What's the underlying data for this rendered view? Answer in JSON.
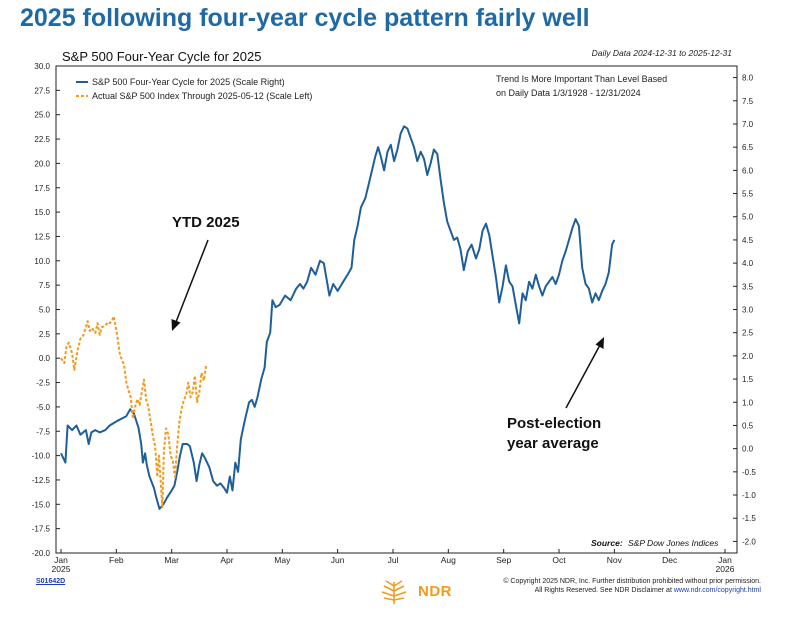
{
  "headline": "2025 following four-year cycle pattern fairly well",
  "chart_data": {
    "type": "line",
    "title": "S&P 500 Four-Year Cycle for 2025",
    "subtitle": "Daily Data 2024-12-31 to 2025-12-31",
    "notes": [
      "Trend Is More Important Than Level Based",
      "on Daily Data 1/3/1928 - 12/31/2024"
    ],
    "source_label": "Source:",
    "source_text": "S&P Dow Jones Indices",
    "x_ticks": [
      {
        "label": "Jan",
        "sub": "2025"
      },
      {
        "label": "Feb"
      },
      {
        "label": "Mar"
      },
      {
        "label": "Apr"
      },
      {
        "label": "May"
      },
      {
        "label": "Jun"
      },
      {
        "label": "Jul"
      },
      {
        "label": "Aug"
      },
      {
        "label": "Sep"
      },
      {
        "label": "Oct"
      },
      {
        "label": "Nov"
      },
      {
        "label": "Dec"
      },
      {
        "label": "Jan",
        "sub": "2026"
      }
    ],
    "left_axis": {
      "ylim": [
        -20,
        30
      ],
      "ticks": [
        "30.0",
        "27.5",
        "25.0",
        "22.5",
        "20.0",
        "17.5",
        "15.0",
        "12.5",
        "10.0",
        "7.5",
        "5.0",
        "2.5",
        "0.0",
        "-2.5",
        "-5.0",
        "-7.5",
        "-10.0",
        "-12.5",
        "-15.0",
        "-17.5",
        "-20.0"
      ]
    },
    "right_axis": {
      "ylim": [
        -2.25,
        8.25
      ],
      "ticks": [
        "8.0",
        "7.5",
        "7.0",
        "6.5",
        "6.0",
        "5.5",
        "5.0",
        "4.5",
        "4.0",
        "3.5",
        "3.0",
        "2.5",
        "2.0",
        "1.5",
        "1.0",
        "0.5",
        "0.0",
        "-0.5",
        "-1.0",
        "-1.5",
        "-2.0"
      ]
    },
    "series": [
      {
        "name": "S&P 500 Four-Year Cycle for 2025 (Scale Right)",
        "axis": "right",
        "color": "#1f5f99",
        "style": "solid",
        "points": [
          [
            0.0,
            -0.1
          ],
          [
            0.08,
            -0.3
          ],
          [
            0.12,
            0.5
          ],
          [
            0.2,
            0.4
          ],
          [
            0.28,
            0.5
          ],
          [
            0.35,
            0.3
          ],
          [
            0.45,
            0.4
          ],
          [
            0.5,
            0.1
          ],
          [
            0.55,
            0.35
          ],
          [
            0.62,
            0.4
          ],
          [
            0.7,
            0.35
          ],
          [
            0.8,
            0.4
          ],
          [
            0.88,
            0.5
          ],
          [
            0.95,
            0.55
          ],
          [
            1.02,
            0.6
          ],
          [
            1.1,
            0.65
          ],
          [
            1.18,
            0.7
          ],
          [
            1.25,
            0.85
          ],
          [
            1.32,
            0.75
          ],
          [
            1.4,
            0.45
          ],
          [
            1.45,
            0.1
          ],
          [
            1.48,
            -0.3
          ],
          [
            1.52,
            -0.1
          ],
          [
            1.55,
            -0.35
          ],
          [
            1.6,
            -0.6
          ],
          [
            1.68,
            -0.85
          ],
          [
            1.72,
            -1.05
          ],
          [
            1.78,
            -1.3
          ],
          [
            1.85,
            -1.2
          ],
          [
            1.92,
            -1.05
          ],
          [
            2.0,
            -0.9
          ],
          [
            2.05,
            -0.8
          ],
          [
            2.1,
            -0.5
          ],
          [
            2.15,
            -0.15
          ],
          [
            2.2,
            0.1
          ],
          [
            2.28,
            0.1
          ],
          [
            2.33,
            0.05
          ],
          [
            2.4,
            -0.3
          ],
          [
            2.45,
            -0.7
          ],
          [
            2.5,
            -0.35
          ],
          [
            2.55,
            -0.1
          ],
          [
            2.6,
            -0.2
          ],
          [
            2.68,
            -0.4
          ],
          [
            2.75,
            -0.7
          ],
          [
            2.82,
            -0.8
          ],
          [
            2.88,
            -0.75
          ],
          [
            2.95,
            -0.85
          ],
          [
            3.0,
            -0.95
          ],
          [
            3.05,
            -0.6
          ],
          [
            3.1,
            -0.9
          ],
          [
            3.15,
            -0.3
          ],
          [
            3.2,
            -0.5
          ],
          [
            3.25,
            0.2
          ],
          [
            3.32,
            0.6
          ],
          [
            3.4,
            1.0
          ],
          [
            3.45,
            1.05
          ],
          [
            3.5,
            0.9
          ],
          [
            3.55,
            1.1
          ],
          [
            3.62,
            1.5
          ],
          [
            3.68,
            1.75
          ],
          [
            3.72,
            2.3
          ],
          [
            3.78,
            2.5
          ],
          [
            3.82,
            3.2
          ],
          [
            3.88,
            3.05
          ],
          [
            3.95,
            3.1
          ],
          [
            4.05,
            3.3
          ],
          [
            4.15,
            3.2
          ],
          [
            4.25,
            3.45
          ],
          [
            4.32,
            3.55
          ],
          [
            4.38,
            3.45
          ],
          [
            4.45,
            3.6
          ],
          [
            4.52,
            3.9
          ],
          [
            4.6,
            3.75
          ],
          [
            4.68,
            4.05
          ],
          [
            4.75,
            4.0
          ],
          [
            4.85,
            3.3
          ],
          [
            4.92,
            3.55
          ],
          [
            5.0,
            3.4
          ],
          [
            5.1,
            3.6
          ],
          [
            5.18,
            3.75
          ],
          [
            5.25,
            3.9
          ],
          [
            5.3,
            4.5
          ],
          [
            5.36,
            4.8
          ],
          [
            5.42,
            5.2
          ],
          [
            5.5,
            5.4
          ],
          [
            5.56,
            5.7
          ],
          [
            5.62,
            6.0
          ],
          [
            5.68,
            6.3
          ],
          [
            5.73,
            6.5
          ],
          [
            5.78,
            6.3
          ],
          [
            5.84,
            6.0
          ],
          [
            5.9,
            6.4
          ],
          [
            5.96,
            6.55
          ],
          [
            6.02,
            6.2
          ],
          [
            6.08,
            6.45
          ],
          [
            6.14,
            6.8
          ],
          [
            6.2,
            6.95
          ],
          [
            6.26,
            6.9
          ],
          [
            6.32,
            6.7
          ],
          [
            6.38,
            6.5
          ],
          [
            6.44,
            6.2
          ],
          [
            6.5,
            6.4
          ],
          [
            6.56,
            6.25
          ],
          [
            6.62,
            5.9
          ],
          [
            6.68,
            6.15
          ],
          [
            6.74,
            6.45
          ],
          [
            6.8,
            6.35
          ],
          [
            6.86,
            5.8
          ],
          [
            6.92,
            5.3
          ],
          [
            6.98,
            4.9
          ],
          [
            7.04,
            4.7
          ],
          [
            7.1,
            4.5
          ],
          [
            7.16,
            4.55
          ],
          [
            7.22,
            4.3
          ],
          [
            7.28,
            3.85
          ],
          [
            7.35,
            4.25
          ],
          [
            7.42,
            4.4
          ],
          [
            7.5,
            4.1
          ],
          [
            7.56,
            4.3
          ],
          [
            7.62,
            4.7
          ],
          [
            7.68,
            4.85
          ],
          [
            7.74,
            4.6
          ],
          [
            7.8,
            4.15
          ],
          [
            7.86,
            3.7
          ],
          [
            7.92,
            3.15
          ],
          [
            7.98,
            3.5
          ],
          [
            8.04,
            3.95
          ],
          [
            8.1,
            3.6
          ],
          [
            8.16,
            3.5
          ],
          [
            8.22,
            3.1
          ],
          [
            8.28,
            2.7
          ],
          [
            8.34,
            3.35
          ],
          [
            8.4,
            3.2
          ],
          [
            8.46,
            3.6
          ],
          [
            8.52,
            3.45
          ],
          [
            8.58,
            3.75
          ],
          [
            8.64,
            3.5
          ],
          [
            8.7,
            3.3
          ],
          [
            8.76,
            3.5
          ],
          [
            8.82,
            3.6
          ],
          [
            8.88,
            3.7
          ],
          [
            8.94,
            3.55
          ],
          [
            9.0,
            3.75
          ],
          [
            9.06,
            4.05
          ],
          [
            9.12,
            4.25
          ],
          [
            9.18,
            4.5
          ],
          [
            9.24,
            4.75
          ],
          [
            9.3,
            4.95
          ],
          [
            9.36,
            4.8
          ],
          [
            9.42,
            3.9
          ],
          [
            9.48,
            3.55
          ],
          [
            9.54,
            3.45
          ],
          [
            9.6,
            3.15
          ],
          [
            9.66,
            3.35
          ],
          [
            9.72,
            3.2
          ],
          [
            9.78,
            3.4
          ],
          [
            9.84,
            3.55
          ],
          [
            9.9,
            3.8
          ],
          [
            9.96,
            4.4
          ],
          [
            10.0,
            4.5
          ]
        ]
      },
      {
        "name": "Actual S&P 500 Index Through 2025-05-12 (Scale Left)",
        "axis": "left",
        "color": "#f39a1d",
        "style": "dashed",
        "points": [
          [
            0.0,
            0.0
          ],
          [
            0.06,
            -0.5
          ],
          [
            0.1,
            1.2
          ],
          [
            0.14,
            1.6
          ],
          [
            0.2,
            0.5
          ],
          [
            0.24,
            -1.2
          ],
          [
            0.3,
            0.8
          ],
          [
            0.35,
            2.0
          ],
          [
            0.4,
            2.3
          ],
          [
            0.45,
            3.2
          ],
          [
            0.48,
            3.8
          ],
          [
            0.52,
            2.8
          ],
          [
            0.56,
            3.1
          ],
          [
            0.62,
            2.6
          ],
          [
            0.66,
            3.6
          ],
          [
            0.7,
            2.4
          ],
          [
            0.74,
            3.2
          ],
          [
            0.8,
            3.3
          ],
          [
            0.84,
            3.7
          ],
          [
            0.88,
            3.6
          ],
          [
            0.92,
            3.8
          ],
          [
            0.95,
            4.3
          ],
          [
            0.98,
            3.5
          ],
          [
            1.02,
            2.2
          ],
          [
            1.06,
            0.5
          ],
          [
            1.1,
            -0.2
          ],
          [
            1.14,
            -0.7
          ],
          [
            1.18,
            -2.5
          ],
          [
            1.22,
            -3.3
          ],
          [
            1.26,
            -4.0
          ],
          [
            1.3,
            -6.2
          ],
          [
            1.34,
            -5.0
          ],
          [
            1.38,
            -4.2
          ],
          [
            1.42,
            -4.8
          ],
          [
            1.46,
            -3.5
          ],
          [
            1.5,
            -2.2
          ],
          [
            1.54,
            -4.3
          ],
          [
            1.58,
            -5.0
          ],
          [
            1.62,
            -6.5
          ],
          [
            1.66,
            -8.0
          ],
          [
            1.7,
            -9.0
          ],
          [
            1.74,
            -12.2
          ],
          [
            1.77,
            -10.0
          ],
          [
            1.8,
            -12.5
          ],
          [
            1.83,
            -15.3
          ],
          [
            1.86,
            -9.5
          ],
          [
            1.9,
            -7.2
          ],
          [
            1.94,
            -7.8
          ],
          [
            1.98,
            -10.0
          ],
          [
            2.02,
            -10.5
          ],
          [
            2.06,
            -12.2
          ],
          [
            2.1,
            -9.0
          ],
          [
            2.14,
            -6.5
          ],
          [
            2.18,
            -5.2
          ],
          [
            2.22,
            -4.3
          ],
          [
            2.26,
            -3.8
          ],
          [
            2.3,
            -2.5
          ],
          [
            2.34,
            -4.0
          ],
          [
            2.38,
            -3.5
          ],
          [
            2.42,
            -1.8
          ],
          [
            2.46,
            -4.5
          ],
          [
            2.5,
            -3.5
          ],
          [
            2.54,
            -1.5
          ],
          [
            2.58,
            -2.3
          ],
          [
            2.62,
            -0.8
          ]
        ]
      }
    ],
    "annotations": [
      {
        "text_lines": [
          "YTD 2025"
        ],
        "arrow": "down-right"
      },
      {
        "text_lines": [
          "Post-election",
          "year average"
        ],
        "arrow": "up-left"
      }
    ]
  },
  "footer": {
    "ref_code": "S01642D",
    "logo_text": "NDR",
    "copyright_line1": "© Copyright 2025 NDR, Inc. Further distribution prohibited without prior permission.",
    "copyright_line2": "All Rights Reserved. See NDR Disclaimer at",
    "copyright_link": "www.ndr.com/copyright.html"
  }
}
